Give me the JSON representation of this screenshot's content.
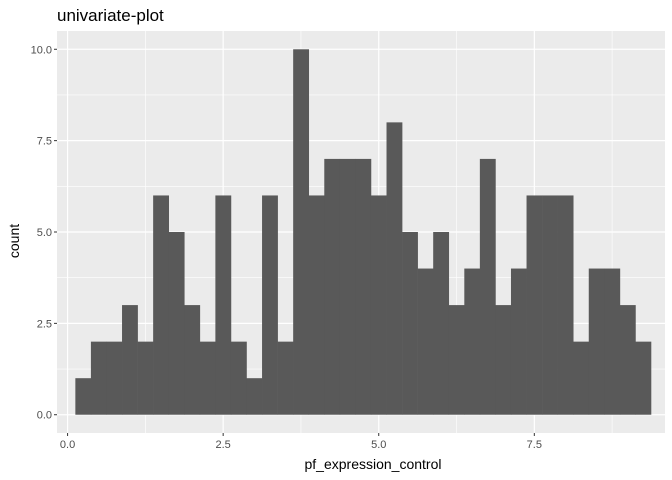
{
  "chart_data": {
    "type": "bar",
    "title": "univariate-plot",
    "xlabel": "pf_expression_control",
    "ylabel": "count",
    "xlim": [
      -0.17,
      9.6
    ],
    "ylim": [
      -0.5,
      10.5
    ],
    "x_ticks": [
      0.0,
      2.5,
      5.0,
      7.5
    ],
    "x_tick_labels": [
      "0.0",
      "2.5",
      "5.0",
      "7.5"
    ],
    "y_ticks": [
      0.0,
      2.5,
      5.0,
      7.5,
      10.0
    ],
    "y_tick_labels": [
      "0.0",
      "2.5",
      "5.0",
      "7.5",
      "10.0"
    ],
    "grid": true,
    "legend": "none",
    "bin_start": 0.125,
    "bin_width": 0.25,
    "values": [
      1,
      2,
      2,
      3,
      2,
      6,
      5,
      3,
      2,
      6,
      2,
      1,
      6,
      2,
      10,
      6,
      7,
      7,
      7,
      6,
      8,
      5,
      4,
      5,
      3,
      4,
      7,
      3,
      4,
      6,
      6,
      6,
      2,
      4,
      4,
      3,
      2
    ],
    "colors": {
      "bar": "#595959",
      "panel": "#ebebeb",
      "grid": "#ffffff",
      "tick": "#333333"
    }
  }
}
